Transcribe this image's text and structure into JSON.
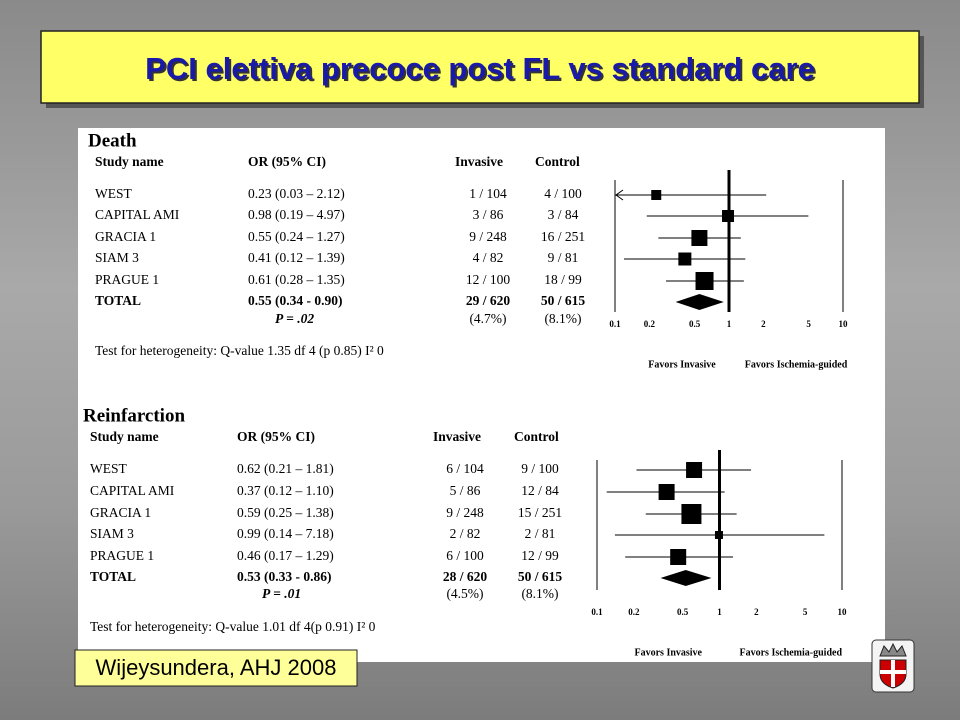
{
  "slide": {
    "title": "PCI elettiva precoce post FL vs standard care",
    "citation": "Wijeysundera, AHJ 2008"
  },
  "panels": [
    {
      "title": "Death",
      "headers": [
        "Study name",
        "OR (95% CI)",
        "Invasive",
        "Control"
      ],
      "rows": [
        {
          "study": "WEST",
          "or_label": "0.23 (0.03 – 2.12)",
          "or": 0.23,
          "ci": [
            0.03,
            2.12
          ],
          "invasive": "1 / 104",
          "control": "4 / 100"
        },
        {
          "study": "CAPITAL AMI",
          "or_label": "0.98 (0.19 – 4.97)",
          "or": 0.98,
          "ci": [
            0.19,
            4.97
          ],
          "invasive": "3 / 86",
          "control": "3 / 84"
        },
        {
          "study": "GRACIA 1",
          "or_label": "0.55 (0.24 – 1.27)",
          "or": 0.55,
          "ci": [
            0.24,
            1.27
          ],
          "invasive": "9 / 248",
          "control": "16 / 251"
        },
        {
          "study": "SIAM 3",
          "or_label": "0.41 (0.12 – 1.39)",
          "or": 0.41,
          "ci": [
            0.12,
            1.39
          ],
          "invasive": "4 / 82",
          "control": "9 / 81"
        },
        {
          "study": "PRAGUE 1",
          "or_label": "0.61 (0.28 – 1.35)",
          "or": 0.61,
          "ci": [
            0.28,
            1.35
          ],
          "invasive": "12 / 100",
          "control": "18 / 99"
        }
      ],
      "total": {
        "study": "TOTAL",
        "or_label": "0.55 (0.34 - 0.90)",
        "or": 0.55,
        "ci": [
          0.34,
          0.9
        ],
        "invasive": "29 / 620",
        "control": "50 / 615"
      },
      "p_value": "P = .02",
      "invasive_pct": "(4.7%)",
      "control_pct": "(8.1%)",
      "heterogeneity": "Test for heterogeneity: Q-value 1.35 df 4 (p 0.85) I² 0",
      "forest": {
        "log": true,
        "xlim": [
          0.1,
          10
        ],
        "xticks": [
          0.1,
          0.2,
          0.5,
          1,
          2,
          5,
          10
        ],
        "favors": [
          "Favors Invasive",
          "Favors Ischemia-guided"
        ]
      }
    },
    {
      "title": "Reinfarction",
      "headers": [
        "Study name",
        "OR (95% CI)",
        "Invasive",
        "Control"
      ],
      "rows": [
        {
          "study": "WEST",
          "or_label": "0.62 (0.21 – 1.81)",
          "or": 0.62,
          "ci": [
            0.21,
            1.81
          ],
          "invasive": "6 / 104",
          "control": "9 / 100"
        },
        {
          "study": "CAPITAL AMI",
          "or_label": "0.37 (0.12 – 1.10)",
          "or": 0.37,
          "ci": [
            0.12,
            1.1
          ],
          "invasive": "5 / 86",
          "control": "12 / 84"
        },
        {
          "study": "GRACIA 1",
          "or_label": "0.59 (0.25 – 1.38)",
          "or": 0.59,
          "ci": [
            0.25,
            1.38
          ],
          "invasive": "9 / 248",
          "control": "15 / 251"
        },
        {
          "study": "SIAM 3",
          "or_label": "0.99 (0.14 – 7.18)",
          "or": 0.99,
          "ci": [
            0.14,
            7.18
          ],
          "invasive": "2 / 82",
          "control": "2 / 81"
        },
        {
          "study": "PRAGUE 1",
          "or_label": "0.46 (0.17 – 1.29)",
          "or": 0.46,
          "ci": [
            0.17,
            1.29
          ],
          "invasive": "6 / 100",
          "control": "12 / 99"
        }
      ],
      "total": {
        "study": "TOTAL",
        "or_label": "0.53 (0.33 - 0.86)",
        "or": 0.53,
        "ci": [
          0.33,
          0.86
        ],
        "invasive": "28 / 620",
        "control": "50 / 615"
      },
      "p_value": "P = .01",
      "invasive_pct": "(4.5%)",
      "control_pct": "(8.1%)",
      "heterogeneity": "Test for heterogeneity: Q-value 1.01 df 4(p 0.91) I² 0",
      "forest": {
        "log": true,
        "xlim": [
          0.1,
          10
        ],
        "xticks": [
          0.1,
          0.2,
          0.5,
          1,
          2,
          5,
          10
        ],
        "favors": [
          "Favors Invasive",
          "Favors Ischemia-guided"
        ]
      }
    }
  ]
}
